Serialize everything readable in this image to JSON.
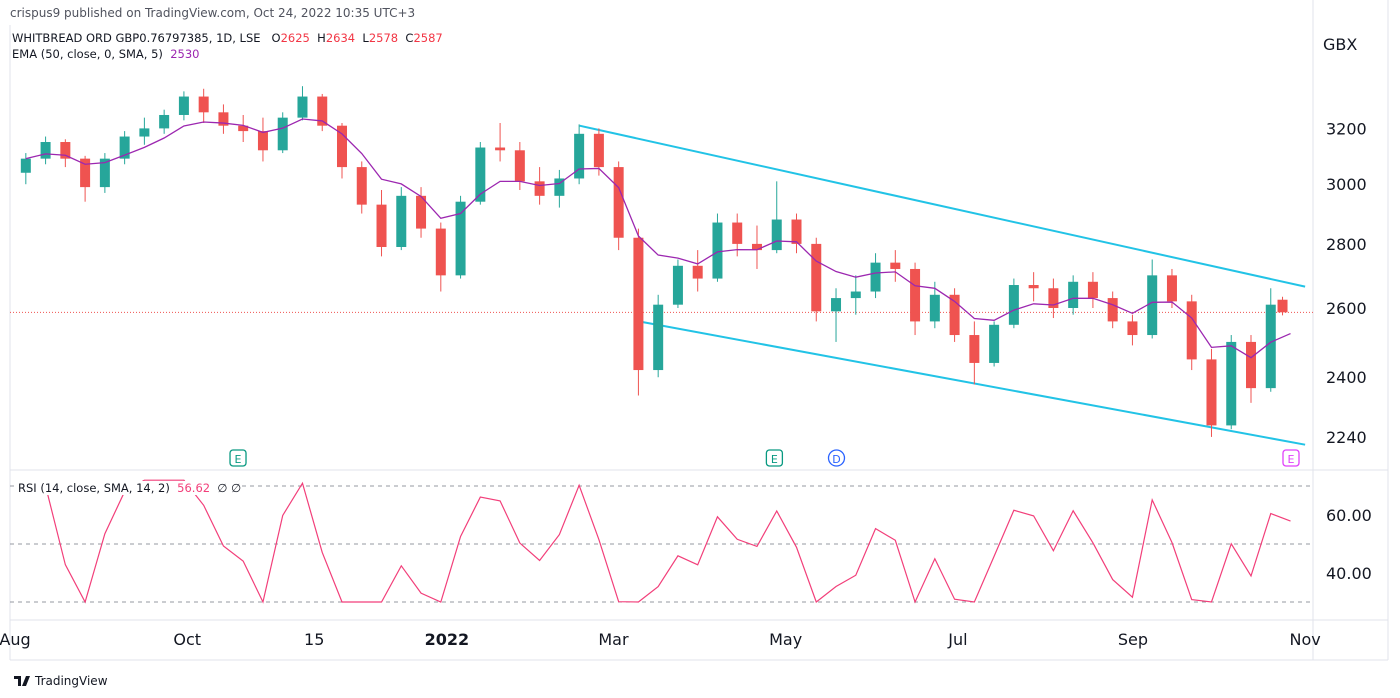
{
  "publisher_line": "crispus9 published on TradingView.com, Oct 24, 2022 10:35 UTC+3",
  "legend": {
    "symbol": "WHITBREAD ORD GBP0.76797385, 1D, LSE",
    "o_label": "O",
    "o": "2625",
    "h_label": "H",
    "h": "2634",
    "l_label": "L",
    "l": "2578",
    "c_label": "C",
    "c": "2587",
    "ema_label": "EMA (50, close, 0, SMA, 5)",
    "ema_value": "2530"
  },
  "rsi_legend": {
    "label": "RSI (14, close, SMA, 14, 2)",
    "value": "56.62",
    "extra": "∅ ∅"
  },
  "footer": {
    "brand": "TradingView"
  },
  "colors": {
    "up": "#26a69a",
    "down": "#ef5350",
    "ema": "#9c27b0",
    "rsi": "#f23f7a",
    "channel": "#22c3e6",
    "earnings": "#089981",
    "dividend": "#2962ff",
    "upcoming": "#e040fb"
  },
  "chart_data": {
    "type": "candlestick",
    "currency": "GBX",
    "y_scale": "log",
    "y_ticks": [
      3200,
      3000,
      2800,
      2600,
      2400,
      2240
    ],
    "x_ticks": [
      {
        "date": "2021-08-01",
        "label": "Aug"
      },
      {
        "date": "2021-10-01",
        "label": "Oct"
      },
      {
        "date": "2021-11-15",
        "label": "15"
      },
      {
        "date": "2022-01-01",
        "label": "2022"
      },
      {
        "date": "2022-03-01",
        "label": "Mar"
      },
      {
        "date": "2022-05-01",
        "label": "May"
      },
      {
        "date": "2022-07-01",
        "label": "Jul"
      },
      {
        "date": "2022-09-01",
        "label": "Sep"
      },
      {
        "date": "2022-11-01",
        "label": "Nov"
      }
    ],
    "last_price": 2587,
    "candles": [
      [
        "2021-08-02",
        3040,
        3110,
        3000,
        3090
      ],
      [
        "2021-08-09",
        3090,
        3170,
        3070,
        3150
      ],
      [
        "2021-08-16",
        3150,
        3160,
        3060,
        3090
      ],
      [
        "2021-08-23",
        3090,
        3100,
        2940,
        2990
      ],
      [
        "2021-08-30",
        2990,
        3110,
        2970,
        3090
      ],
      [
        "2021-09-06",
        3090,
        3190,
        3070,
        3170
      ],
      [
        "2021-09-13",
        3170,
        3240,
        3140,
        3200
      ],
      [
        "2021-09-20",
        3200,
        3270,
        3180,
        3250
      ],
      [
        "2021-09-27",
        3250,
        3340,
        3230,
        3320
      ],
      [
        "2021-10-04",
        3320,
        3350,
        3220,
        3260
      ],
      [
        "2021-10-11",
        3260,
        3290,
        3180,
        3210
      ],
      [
        "2021-10-18",
        3210,
        3250,
        3150,
        3190
      ],
      [
        "2021-10-25",
        3190,
        3240,
        3080,
        3120
      ],
      [
        "2021-11-01",
        3120,
        3260,
        3110,
        3240
      ],
      [
        "2021-11-08",
        3240,
        3360,
        3230,
        3320
      ],
      [
        "2021-11-15",
        3320,
        3330,
        3190,
        3210
      ],
      [
        "2021-11-22",
        3210,
        3220,
        3020,
        3060
      ],
      [
        "2021-11-29",
        3060,
        3080,
        2900,
        2930
      ],
      [
        "2021-12-06",
        2930,
        2980,
        2760,
        2790
      ],
      [
        "2021-12-13",
        2790,
        2990,
        2780,
        2960
      ],
      [
        "2021-12-20",
        2960,
        2990,
        2820,
        2850
      ],
      [
        "2021-12-27",
        2850,
        2870,
        2650,
        2700
      ],
      [
        "2022-01-03",
        2700,
        2960,
        2690,
        2940
      ],
      [
        "2022-01-10",
        2940,
        3150,
        2930,
        3130
      ],
      [
        "2022-01-17",
        3130,
        3220,
        3080,
        3120
      ],
      [
        "2022-01-24",
        3120,
        3150,
        2980,
        3010
      ],
      [
        "2022-01-31",
        3010,
        3060,
        2930,
        2960
      ],
      [
        "2022-02-07",
        2960,
        3050,
        2920,
        3020
      ],
      [
        "2022-02-14",
        3020,
        3215,
        3000,
        3180
      ],
      [
        "2022-02-21",
        3180,
        3200,
        3030,
        3060
      ],
      [
        "2022-02-28",
        3060,
        3080,
        2780,
        2820
      ],
      [
        "2022-03-07",
        2820,
        2850,
        2350,
        2420
      ],
      [
        "2022-03-14",
        2420,
        2640,
        2400,
        2610
      ],
      [
        "2022-03-21",
        2610,
        2750,
        2600,
        2730
      ],
      [
        "2022-03-28",
        2730,
        2780,
        2650,
        2690
      ],
      [
        "2022-04-04",
        2690,
        2900,
        2680,
        2870
      ],
      [
        "2022-04-11",
        2870,
        2900,
        2760,
        2800
      ],
      [
        "2022-04-18",
        2800,
        2860,
        2720,
        2780
      ],
      [
        "2022-04-25",
        2780,
        3010,
        2770,
        2880
      ],
      [
        "2022-05-02",
        2880,
        2900,
        2770,
        2800
      ],
      [
        "2022-05-09",
        2800,
        2820,
        2560,
        2590
      ],
      [
        "2022-05-16",
        2590,
        2660,
        2500,
        2630
      ],
      [
        "2022-05-23",
        2630,
        2700,
        2580,
        2650
      ],
      [
        "2022-05-30",
        2650,
        2770,
        2630,
        2740
      ],
      [
        "2022-06-06",
        2740,
        2780,
        2680,
        2720
      ],
      [
        "2022-06-13",
        2720,
        2740,
        2520,
        2560
      ],
      [
        "2022-06-20",
        2560,
        2680,
        2540,
        2640
      ],
      [
        "2022-06-27",
        2640,
        2660,
        2500,
        2520
      ],
      [
        "2022-07-04",
        2520,
        2560,
        2380,
        2440
      ],
      [
        "2022-07-11",
        2440,
        2560,
        2430,
        2550
      ],
      [
        "2022-07-18",
        2550,
        2690,
        2540,
        2670
      ],
      [
        "2022-07-25",
        2670,
        2710,
        2620,
        2660
      ],
      [
        "2022-08-01",
        2660,
        2690,
        2570,
        2600
      ],
      [
        "2022-08-08",
        2600,
        2700,
        2580,
        2680
      ],
      [
        "2022-08-15",
        2680,
        2710,
        2600,
        2630
      ],
      [
        "2022-08-22",
        2630,
        2650,
        2540,
        2560
      ],
      [
        "2022-08-29",
        2560,
        2580,
        2490,
        2520
      ],
      [
        "2022-09-05",
        2520,
        2750,
        2510,
        2700
      ],
      [
        "2022-09-12",
        2700,
        2720,
        2600,
        2620
      ],
      [
        "2022-09-19",
        2620,
        2640,
        2420,
        2450
      ],
      [
        "2022-09-26",
        2450,
        2480,
        2240,
        2270
      ],
      [
        "2022-10-03",
        2270,
        2520,
        2260,
        2500
      ],
      [
        "2022-10-10",
        2500,
        2520,
        2330,
        2370
      ],
      [
        "2022-10-17",
        2370,
        2660,
        2360,
        2610
      ],
      [
        "2022-10-24",
        2625,
        2634,
        2578,
        2587
      ]
    ],
    "trend_lines": [
      {
        "from": [
          "2022-02-17",
          3210
        ],
        "to": [
          "2022-11-01",
          2665
        ]
      },
      {
        "from": [
          "2022-03-10",
          2560
        ],
        "to": [
          "2022-11-01",
          2220
        ]
      }
    ],
    "events": [
      {
        "date": "2021-10-19",
        "label": "E",
        "kind": "earnings"
      },
      {
        "date": "2022-04-27",
        "label": "E",
        "kind": "earnings"
      },
      {
        "date": "2022-05-19",
        "label": "D",
        "kind": "dividend"
      },
      {
        "date": "2022-10-27",
        "label": "E",
        "kind": "upcoming"
      }
    ],
    "rsi": {
      "ticks": [
        60,
        40
      ],
      "bands": [
        70,
        50,
        30
      ],
      "range": [
        25,
        75
      ]
    }
  }
}
